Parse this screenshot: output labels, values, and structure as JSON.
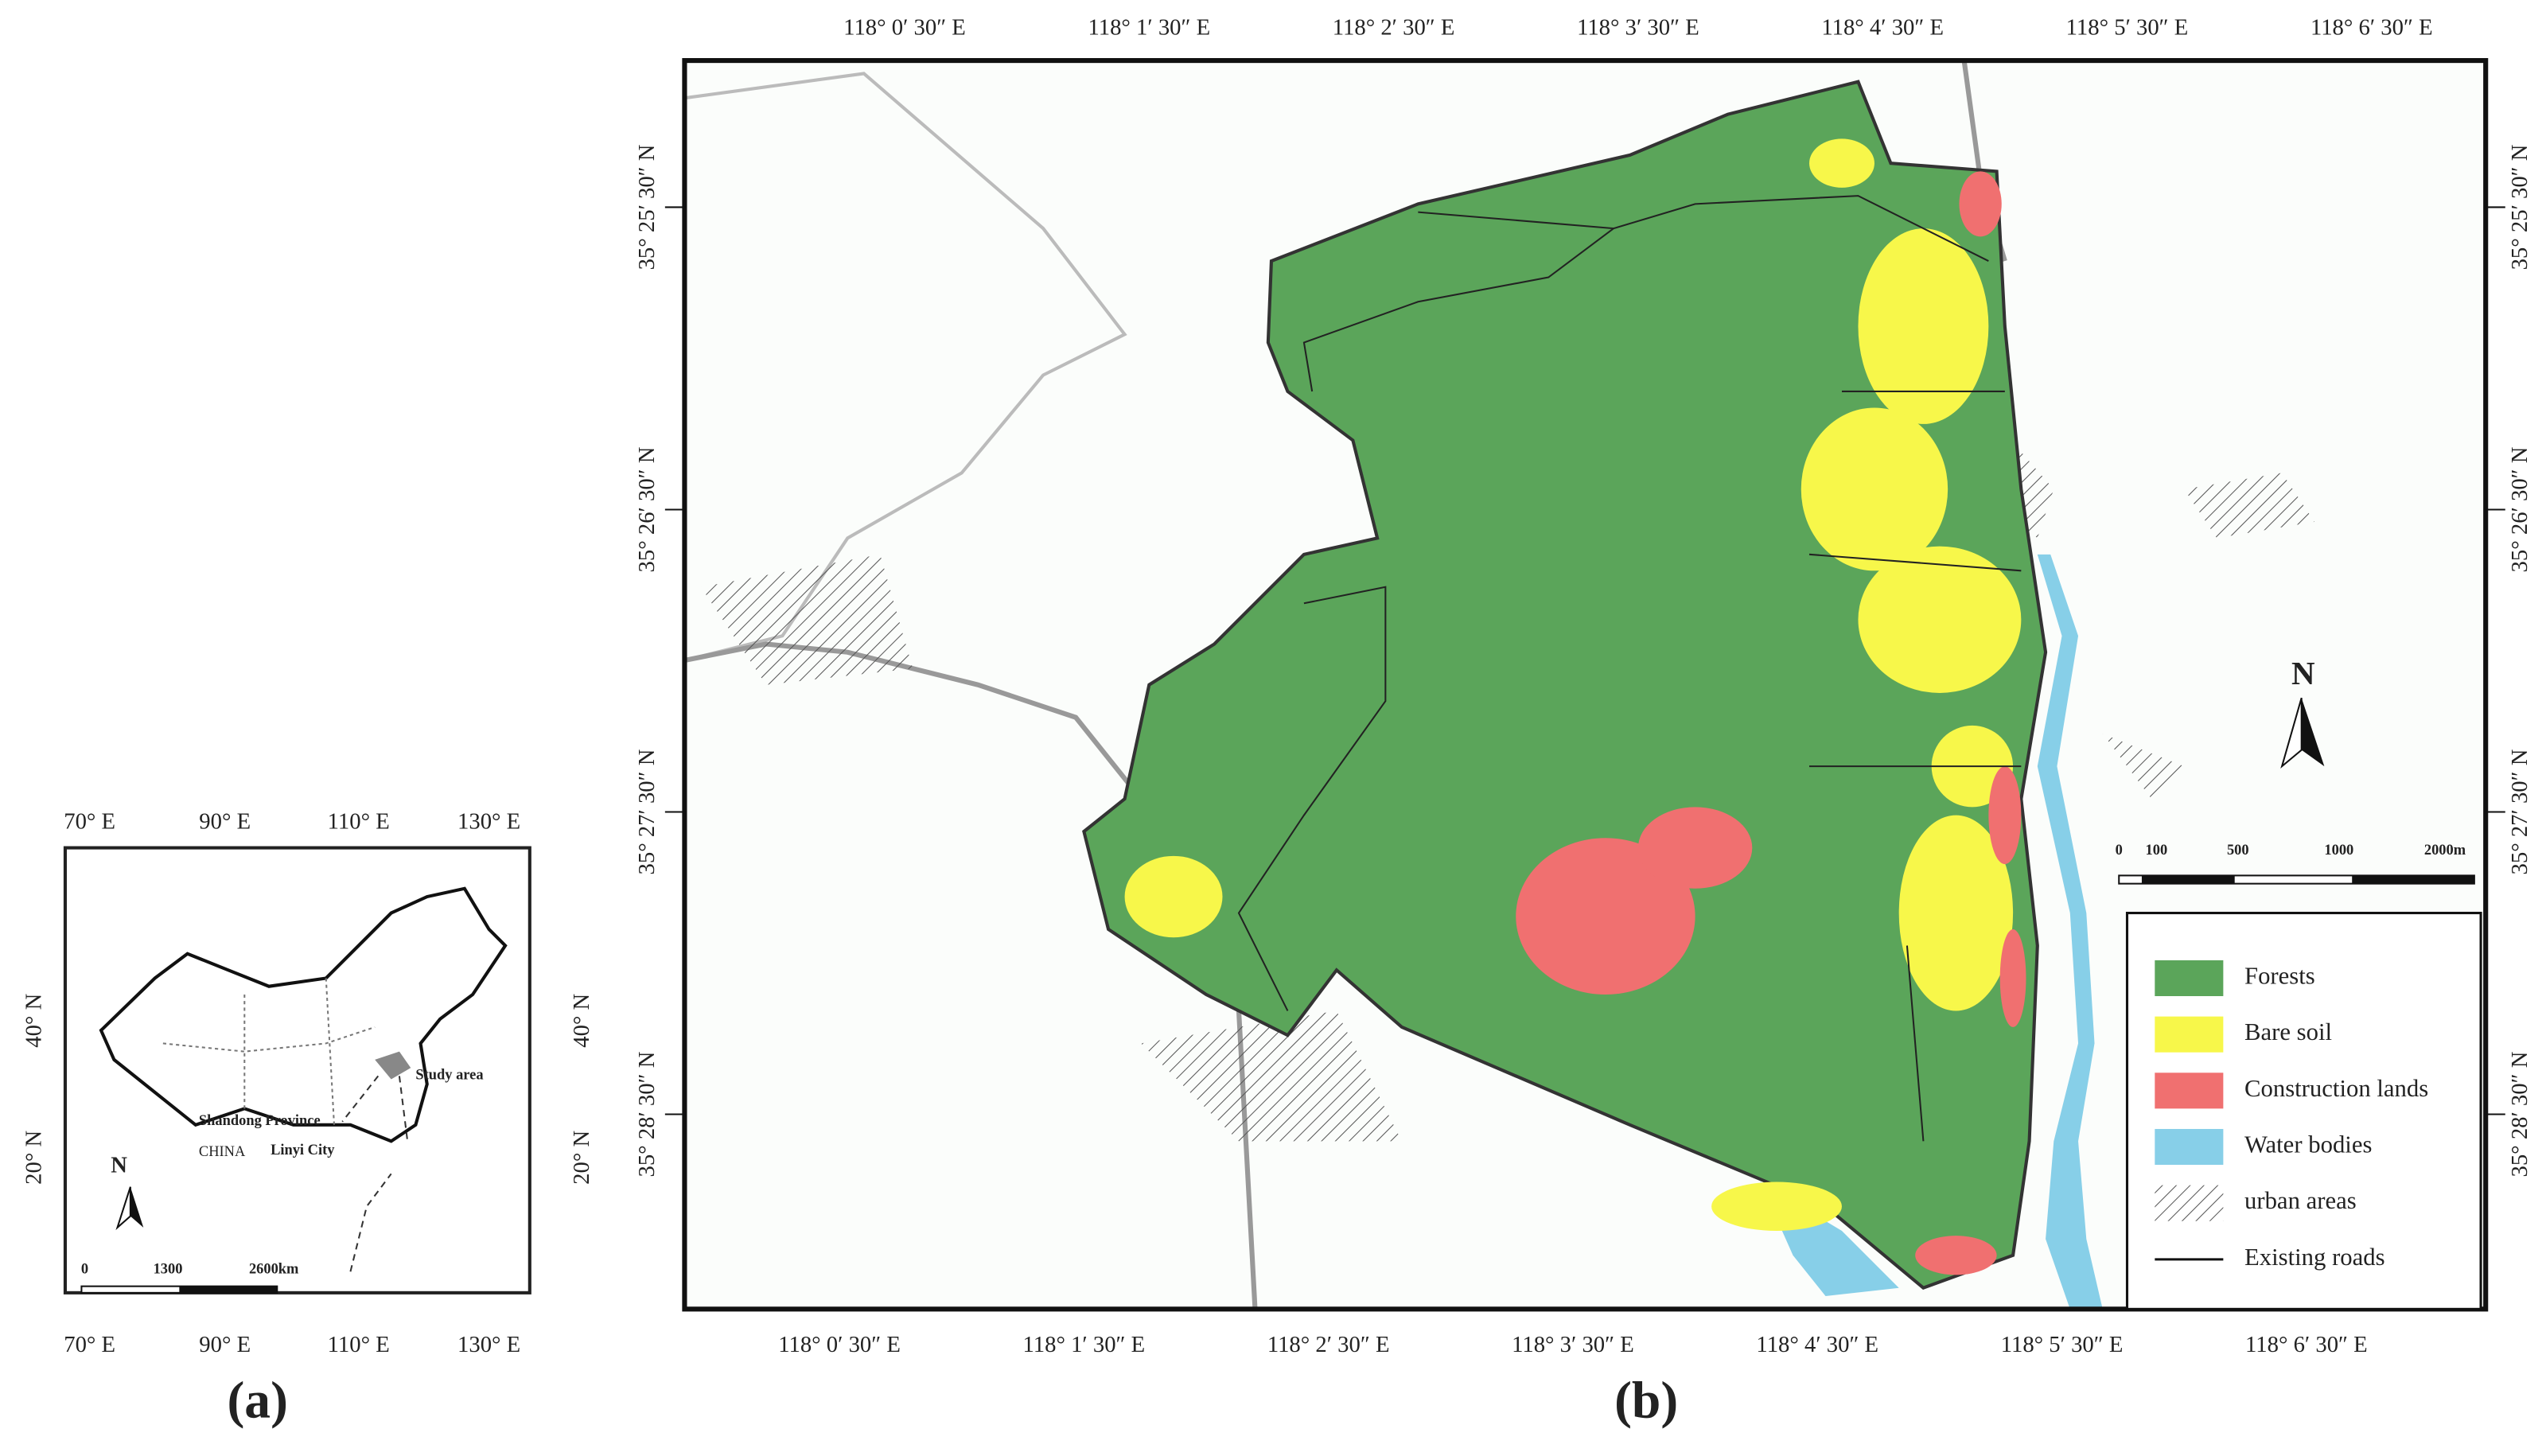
{
  "panel_a": {
    "label": "(a)",
    "lon_ticks": [
      "70° E",
      "90° E",
      "110° E",
      "130° E"
    ],
    "lat_ticks": [
      "40° N",
      "20° N"
    ],
    "annotations": {
      "study_area": "Study area",
      "province": "Shandong Province",
      "city": "Linyi City",
      "country": "CHINA",
      "north": "N"
    },
    "scale_labels": [
      "0",
      "1300",
      "2600km"
    ]
  },
  "panel_b": {
    "label": "(b)",
    "top_lon_ticks": [
      "118° 0′ 30″ E",
      "118° 1′ 30″ E",
      "118° 2′ 30″ E",
      "118° 3′ 30″ E",
      "118° 4′ 30″ E",
      "118° 5′ 30″ E",
      "118° 6′ 30″ E"
    ],
    "bottom_lon_ticks": [
      "118° 0′ 30″ E",
      "118° 1′ 30″ E",
      "118° 2′ 30″ E",
      "118° 3′ 30″ E",
      "118° 4′ 30″ E",
      "118° 5′ 30″ E",
      "118° 6′ 30″ E"
    ],
    "lat_ticks": [
      "35° 25′ 30″ N",
      "35° 26′ 30″ N",
      "35° 27′ 30″ N",
      "35° 28′ 30″ N"
    ],
    "north": "N",
    "scale_labels": [
      "0",
      "100",
      "500",
      "1000",
      "2000m"
    ],
    "legend": [
      {
        "name": "Forests",
        "color": "#5ba55a"
      },
      {
        "name": "Bare soil",
        "color": "#f7f74a"
      },
      {
        "name": "Construction lands",
        "color": "#f07070"
      },
      {
        "name": "Water bodies",
        "color": "#87cfe8"
      },
      {
        "name": "urban areas"
      },
      {
        "name": "Existing roads"
      }
    ]
  }
}
